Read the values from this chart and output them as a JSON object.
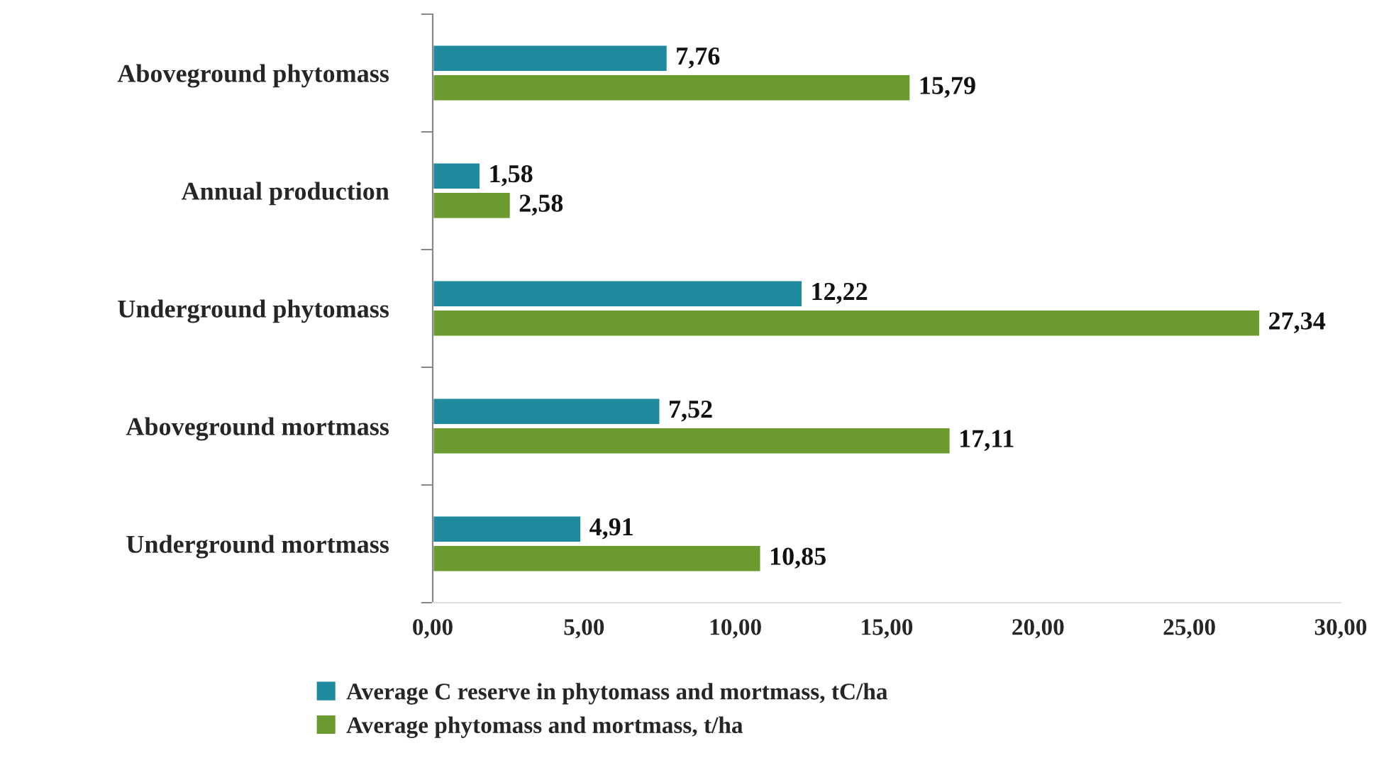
{
  "chart_data": {
    "type": "bar",
    "orientation": "horizontal",
    "categories": [
      "Aboveground phytomass",
      "Annual production",
      "Underground phytomass",
      "Aboveground mortmass",
      "Underground mortmass"
    ],
    "series": [
      {
        "name": "Average C reserve in phytomass and mortmass, tC/ha",
        "color": "#1f8a9e",
        "values": [
          7.76,
          1.58,
          12.22,
          7.52,
          4.91
        ],
        "value_labels": [
          "7,76",
          "1,58",
          "12,22",
          "7,52",
          "4,91"
        ]
      },
      {
        "name": "Average phytomass and mortmass, t/ha",
        "color": "#6b9a2f",
        "values": [
          15.79,
          2.58,
          27.34,
          17.11,
          10.85
        ],
        "value_labels": [
          "15,79",
          "2,58",
          "27,34",
          "17,11",
          "10,85"
        ]
      }
    ],
    "xlim": [
      0,
      30
    ],
    "xticks": [
      {
        "value": 0,
        "label": "0,00"
      },
      {
        "value": 5,
        "label": "5,00"
      },
      {
        "value": 10,
        "label": "10,00"
      },
      {
        "value": 15,
        "label": "15,00"
      },
      {
        "value": 20,
        "label": "20,00"
      },
      {
        "value": 25,
        "label": "25,00"
      },
      {
        "value": 30,
        "label": "30,00"
      }
    ],
    "grid": false,
    "legend": "bottom"
  }
}
